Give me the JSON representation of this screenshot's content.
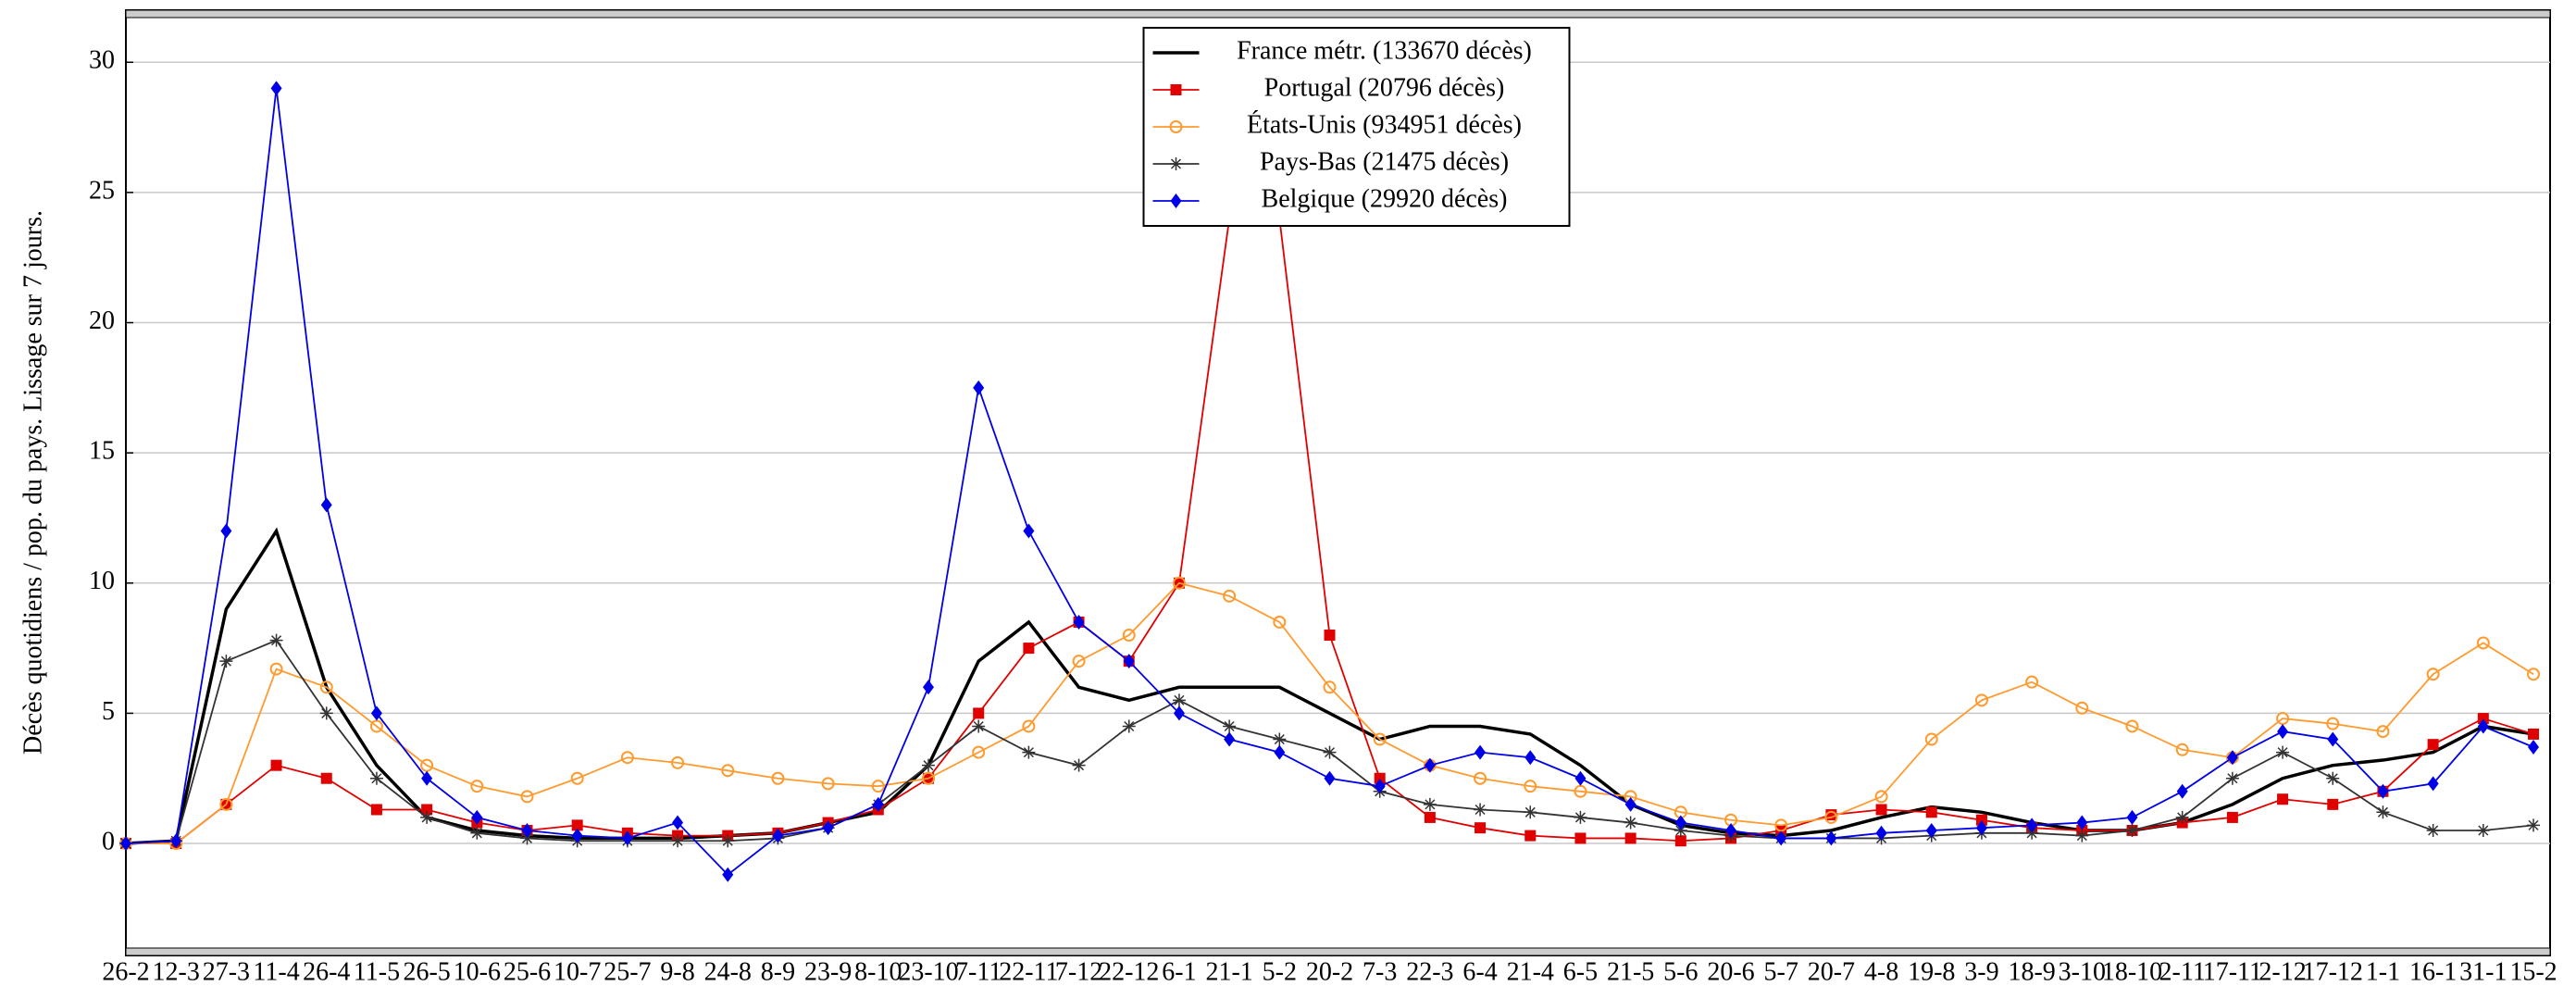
{
  "chart_data": {
    "type": "line",
    "y_label": "Décès quotidiens / pop. du pays. Lissage sur 7 jours.",
    "categories": [
      "26-2",
      "12-3",
      "27-3",
      "11-4",
      "26-4",
      "11-5",
      "26-5",
      "10-6",
      "25-6",
      "10-7",
      "25-7",
      "9-8",
      "24-8",
      "8-9",
      "23-9",
      "8-10",
      "23-10",
      "7-11",
      "22-11",
      "7-12",
      "22-12",
      "6-1",
      "21-1",
      "5-2",
      "20-2",
      "7-3",
      "22-3",
      "6-4",
      "21-4",
      "6-5",
      "21-5",
      "5-6",
      "20-6",
      "5-7",
      "20-7",
      "4-8",
      "19-8",
      "3-9",
      "18-9",
      "3-10",
      "18-10",
      "2-11",
      "17-11",
      "2-12",
      "17-12",
      "1-1",
      "16-1",
      "31-1",
      "15-2"
    ],
    "series": [
      {
        "name": "France métr. (133670 décès)",
        "color": "#000000",
        "marker": "none",
        "values": [
          0,
          0.1,
          9,
          12,
          6,
          3,
          1,
          0.5,
          0.3,
          0.2,
          0.2,
          0.2,
          0.3,
          0.4,
          0.8,
          1.2,
          3,
          7,
          8.5,
          6,
          5.5,
          6,
          6,
          6,
          5,
          4,
          4.5,
          4.5,
          4.2,
          3,
          1.5,
          0.7,
          0.4,
          0.3,
          0.5,
          1,
          1.4,
          1.2,
          0.8,
          0.5,
          0.5,
          0.8,
          1.5,
          2.5,
          3,
          3.2,
          3.5,
          4.5,
          4.2
        ]
      },
      {
        "name": "Portugal (20796 décès)",
        "color": "#e00000",
        "marker": "square",
        "values": [
          0,
          0,
          1.5,
          3,
          2.5,
          1.3,
          1.3,
          0.8,
          0.5,
          0.7,
          0.4,
          0.3,
          0.3,
          0.4,
          0.8,
          1.3,
          2.5,
          5,
          7.5,
          8.5,
          7,
          10,
          24,
          24,
          8,
          2.5,
          1,
          0.6,
          0.3,
          0.2,
          0.2,
          0.1,
          0.2,
          0.5,
          1.1,
          1.3,
          1.2,
          0.9,
          0.6,
          0.5,
          0.5,
          0.8,
          1,
          1.7,
          1.5,
          2,
          3.8,
          4.8,
          4.2
        ]
      },
      {
        "name": "États-Unis (934951 décès)",
        "color": "#ff9a2e",
        "marker": "circle",
        "values": [
          0,
          0,
          1.5,
          6.7,
          6,
          4.5,
          3,
          2.2,
          1.8,
          2.5,
          3.3,
          3.1,
          2.8,
          2.5,
          2.3,
          2.2,
          2.5,
          3.5,
          4.5,
          7,
          8,
          10,
          9.5,
          8.5,
          6,
          4,
          3,
          2.5,
          2.2,
          2,
          1.8,
          1.2,
          0.9,
          0.7,
          1,
          1.8,
          4,
          5.5,
          6.2,
          5.2,
          4.5,
          3.6,
          3.3,
          4.8,
          4.6,
          4.3,
          6.5,
          7.7,
          6.5
        ]
      },
      {
        "name": "Pays-Bas (21475 décès)",
        "color": "#333333",
        "marker": "star",
        "values": [
          0,
          0.1,
          7,
          7.8,
          5,
          2.5,
          1,
          0.4,
          0.2,
          0.1,
          0.1,
          0.1,
          0.1,
          0.2,
          0.6,
          1.5,
          3,
          4.5,
          3.5,
          3,
          4.5,
          5.5,
          4.5,
          4,
          3.5,
          2,
          1.5,
          1.3,
          1.2,
          1,
          0.8,
          0.5,
          0.3,
          0.2,
          0.2,
          0.2,
          0.3,
          0.4,
          0.4,
          0.3,
          0.5,
          1,
          2.5,
          3.5,
          2.5,
          1.2,
          0.5,
          0.5,
          0.7
        ]
      },
      {
        "name": "Belgique (29920 décès)",
        "color": "#0000e6",
        "marker": "diamond",
        "values": [
          0,
          0.1,
          12,
          29,
          13,
          5,
          2.5,
          1,
          0.5,
          0.3,
          0.2,
          0.8,
          -1.2,
          0.3,
          0.6,
          1.5,
          6,
          17.5,
          12,
          8.5,
          7,
          5,
          4,
          3.5,
          2.5,
          2.2,
          3,
          3.5,
          3.3,
          2.5,
          1.5,
          0.8,
          0.5,
          0.2,
          0.2,
          0.4,
          0.5,
          0.6,
          0.7,
          0.8,
          1,
          2,
          3.3,
          4.3,
          4,
          2,
          2.3,
          4.5,
          3.7
        ]
      }
    ],
    "ylim": [
      -4.3,
      32
    ],
    "yticks": [
      0,
      5,
      10,
      15,
      20,
      25,
      30
    ],
    "grid": true,
    "legend": "top"
  }
}
